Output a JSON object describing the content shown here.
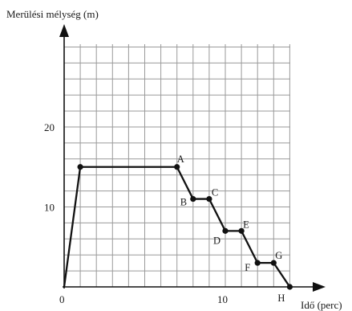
{
  "chart_data": {
    "type": "line",
    "ylabel": "Merülési mélység (m)",
    "xlabel": "Idő (perc)",
    "xlim": [
      0,
      14
    ],
    "ylim": [
      0,
      25
    ],
    "grid": true,
    "x_ticks": [
      0,
      10
    ],
    "y_ticks": [
      10,
      20
    ],
    "x_tick_labels": [
      "0",
      "10"
    ],
    "y_tick_labels": [
      "10",
      "20"
    ],
    "series": [
      {
        "points": [
          {
            "x": 0,
            "y": 0,
            "label": ""
          },
          {
            "x": 1,
            "y": 15,
            "label": ""
          },
          {
            "x": 7,
            "y": 15,
            "label": "A"
          },
          {
            "x": 8,
            "y": 11,
            "label": "B"
          },
          {
            "x": 9,
            "y": 11,
            "label": "C"
          },
          {
            "x": 10,
            "y": 7,
            "label": "D"
          },
          {
            "x": 11,
            "y": 7,
            "label": "E"
          },
          {
            "x": 12,
            "y": 3,
            "label": "F"
          },
          {
            "x": 13,
            "y": 3,
            "label": "G"
          },
          {
            "x": 14,
            "y": 0,
            "label": "H"
          }
        ]
      }
    ]
  }
}
